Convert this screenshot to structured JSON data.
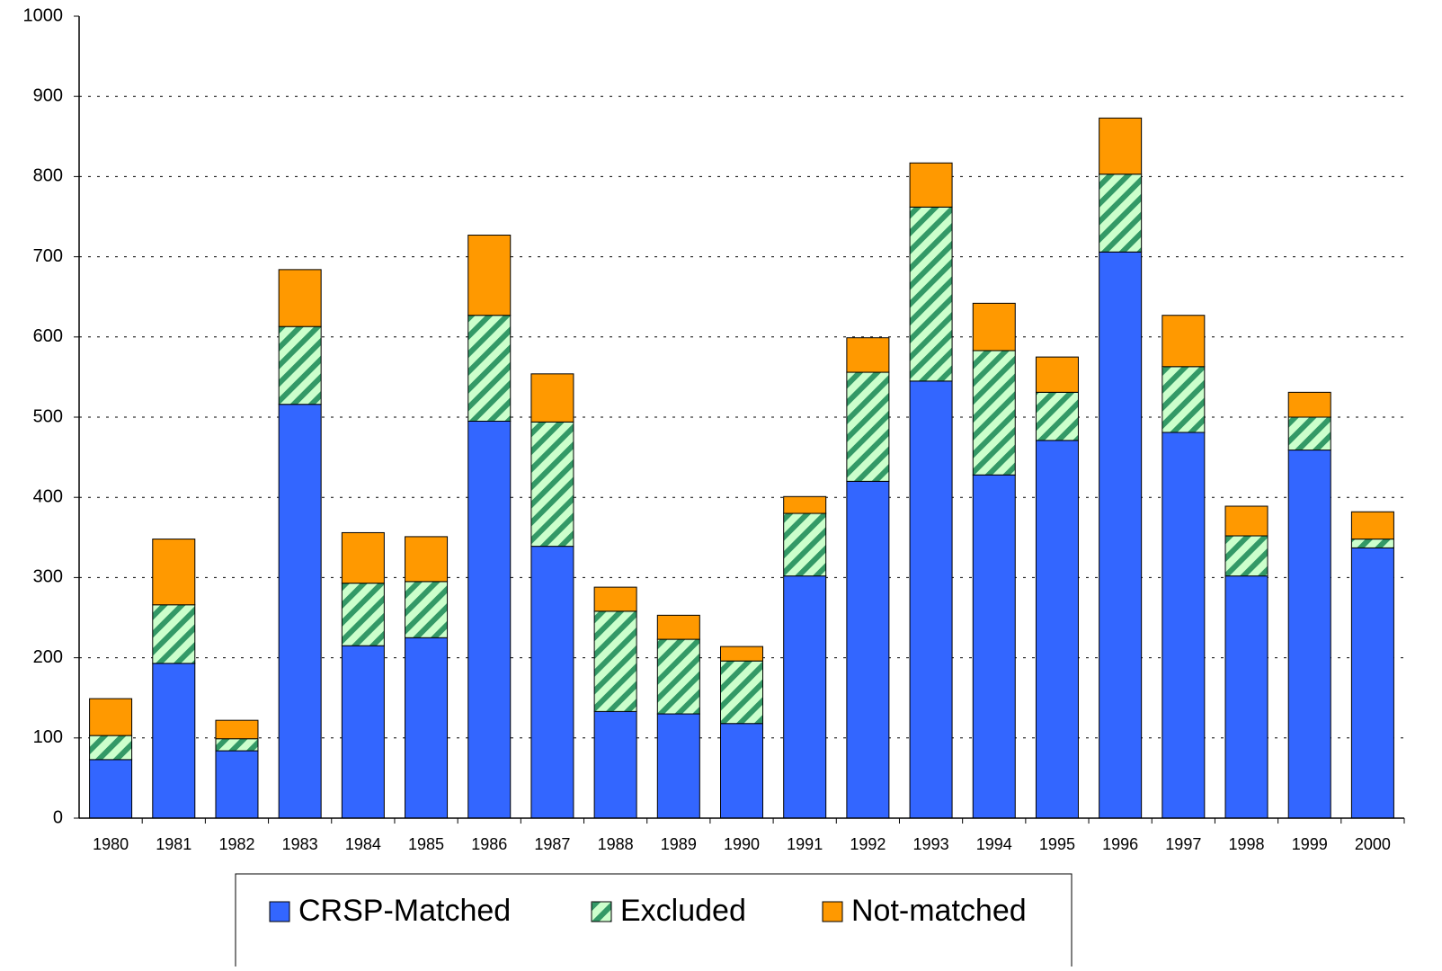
{
  "chart_data": {
    "type": "stacked_bar",
    "categories": [
      "1980",
      "1981",
      "1982",
      "1983",
      "1984",
      "1985",
      "1986",
      "1987",
      "1988",
      "1989",
      "1990",
      "1991",
      "1992",
      "1993",
      "1994",
      "1995",
      "1996",
      "1997",
      "1998",
      "1999",
      "2000"
    ],
    "series": [
      {
        "name": "CRSP-Matched",
        "color": "#3366ff",
        "values": [
          73,
          193,
          84,
          516,
          215,
          225,
          495,
          339,
          133,
          130,
          118,
          302,
          420,
          545,
          428,
          471,
          706,
          481,
          302,
          459,
          337
        ]
      },
      {
        "name": "Excluded",
        "color": "#ccffcc",
        "hatch": "#339966",
        "values": [
          30,
          73,
          15,
          97,
          78,
          70,
          132,
          155,
          125,
          93,
          78,
          78,
          136,
          217,
          155,
          60,
          97,
          82,
          50,
          41,
          11
        ]
      },
      {
        "name": "Not-matched",
        "color": "#ff9900",
        "values": [
          46,
          82,
          23,
          71,
          63,
          56,
          100,
          60,
          30,
          30,
          18,
          21,
          43,
          55,
          59,
          44,
          70,
          64,
          37,
          31,
          34
        ]
      }
    ],
    "ylim": [
      0,
      1000
    ],
    "yticks": [
      0,
      100,
      200,
      300,
      400,
      500,
      600,
      700,
      800,
      900,
      1000
    ],
    "grid": true,
    "legend": "bottom"
  }
}
